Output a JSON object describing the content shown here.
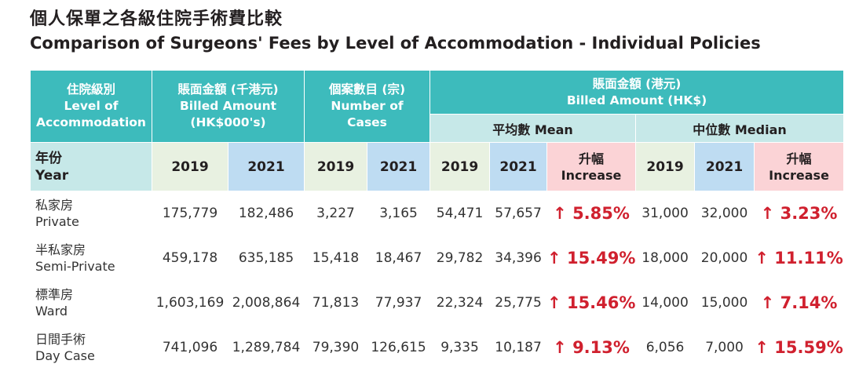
{
  "title_zh": "個人保單之各級住院手術費比較",
  "title_en": "Comparison of Surgeons' Fees by Level of Accommodation - Individual Policies",
  "headers": {
    "level_zh": "住院級別",
    "level_en_1": "Level of",
    "level_en_2": "Accommodation",
    "billed_k_zh": "賬面金額 (千港元)",
    "billed_k_en": "Billed Amount",
    "billed_k_unit": "(HK$000's)",
    "cases_zh": "個案數目 (宗)",
    "cases_en_1": "Number of",
    "cases_en_2": "Cases",
    "billed_zh": "賬面金額 (港元)",
    "billed_en": "Billed Amount (HK$)",
    "mean": "平均數 Mean",
    "median": "中位數 Median",
    "year_zh": "年份",
    "year_en": "Year",
    "y2019": "2019",
    "y2021": "2021",
    "increase_zh": "升幅",
    "increase_en": "Increase"
  },
  "arrow": "↑",
  "rows": [
    {
      "label_zh": "私家房",
      "label_en": "Private",
      "billed_2019": "175,779",
      "billed_2021": "182,486",
      "cases_2019": "3,227",
      "cases_2021": "3,165",
      "mean_2019": "54,471",
      "mean_2021": "57,657",
      "mean_increase": "5.85%",
      "median_2019": "31,000",
      "median_2021": "32,000",
      "median_increase": "3.23%"
    },
    {
      "label_zh": "半私家房",
      "label_en": "Semi-Private",
      "billed_2019": "459,178",
      "billed_2021": "635,185",
      "cases_2019": "15,418",
      "cases_2021": "18,467",
      "mean_2019": "29,782",
      "mean_2021": "34,396",
      "mean_increase": "15.49%",
      "median_2019": "18,000",
      "median_2021": "20,000",
      "median_increase": "11.11%"
    },
    {
      "label_zh": "標準房",
      "label_en": "Ward",
      "billed_2019": "1,603,169",
      "billed_2021": "2,008,864",
      "cases_2019": "71,813",
      "cases_2021": "77,937",
      "mean_2019": "22,324",
      "mean_2021": "25,775",
      "mean_increase": "15.46%",
      "median_2019": "14,000",
      "median_2021": "15,000",
      "median_increase": "7.14%"
    },
    {
      "label_zh": "日間手術",
      "label_en": "Day Case",
      "billed_2019": "741,096",
      "billed_2021": "1,289,784",
      "cases_2019": "79,390",
      "cases_2021": "126,615",
      "mean_2019": "9,335",
      "mean_2021": "10,187",
      "mean_increase": "9.13%",
      "median_2019": "6,056",
      "median_2021": "7,000",
      "median_increase": "15.59%"
    }
  ]
}
